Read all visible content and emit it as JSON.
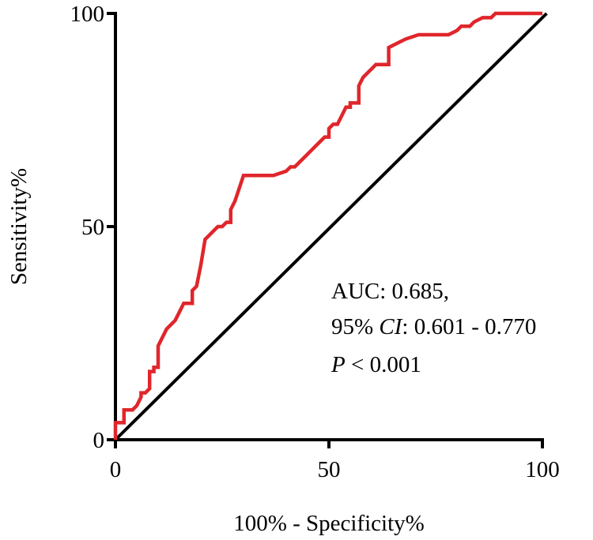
{
  "chart_data": {
    "type": "line",
    "title": "",
    "xlabel": "100% - Specificity%",
    "ylabel": "Sensitivity%",
    "xlim": [
      0,
      100
    ],
    "ylim": [
      0,
      100
    ],
    "xticks": [
      "0",
      "50",
      "100"
    ],
    "yticks": [
      "0",
      "50",
      "100"
    ],
    "grid": false,
    "legend": "none",
    "series": [
      {
        "color": "#e0262b",
        "points": [
          [
            0,
            0
          ],
          [
            0,
            4
          ],
          [
            2,
            4
          ],
          [
            2,
            7
          ],
          [
            4,
            7
          ],
          [
            5,
            8
          ],
          [
            6,
            10
          ],
          [
            6,
            11
          ],
          [
            7,
            11
          ],
          [
            8,
            12
          ],
          [
            8,
            16
          ],
          [
            9,
            16
          ],
          [
            9,
            17
          ],
          [
            10,
            17
          ],
          [
            10,
            22
          ],
          [
            11,
            24
          ],
          [
            12,
            26
          ],
          [
            14,
            28
          ],
          [
            15,
            30
          ],
          [
            16,
            32
          ],
          [
            17,
            32
          ],
          [
            18,
            32
          ],
          [
            18,
            35
          ],
          [
            19,
            36
          ],
          [
            20,
            41
          ],
          [
            21,
            47
          ],
          [
            22,
            48
          ],
          [
            23,
            49
          ],
          [
            24,
            50
          ],
          [
            25,
            50
          ],
          [
            26,
            51
          ],
          [
            27,
            51
          ],
          [
            27,
            54
          ],
          [
            28,
            56
          ],
          [
            29,
            59
          ],
          [
            30,
            62
          ],
          [
            32,
            62
          ],
          [
            34,
            62
          ],
          [
            37,
            62
          ],
          [
            40,
            63
          ],
          [
            41,
            64
          ],
          [
            42,
            64
          ],
          [
            44,
            66
          ],
          [
            46,
            68
          ],
          [
            48,
            70
          ],
          [
            49,
            71
          ],
          [
            50,
            71
          ],
          [
            50,
            73
          ],
          [
            51,
            74
          ],
          [
            52,
            74
          ],
          [
            53,
            76
          ],
          [
            54,
            78
          ],
          [
            55,
            78
          ],
          [
            55,
            79
          ],
          [
            56,
            79
          ],
          [
            57,
            79
          ],
          [
            57,
            83
          ],
          [
            58,
            85
          ],
          [
            60,
            87
          ],
          [
            61,
            88
          ],
          [
            64,
            88
          ],
          [
            64,
            92
          ],
          [
            66,
            93
          ],
          [
            68,
            94
          ],
          [
            71,
            95
          ],
          [
            72,
            95
          ],
          [
            74,
            95
          ],
          [
            78,
            95
          ],
          [
            80,
            96
          ],
          [
            81,
            97
          ],
          [
            83,
            97
          ],
          [
            84,
            98
          ],
          [
            86,
            99
          ],
          [
            88,
            99
          ],
          [
            89,
            100
          ],
          [
            91,
            100
          ],
          [
            95,
            100
          ],
          [
            100,
            100
          ]
        ]
      },
      {
        "color": "#000000",
        "points": [
          [
            0,
            0
          ],
          [
            101,
            100
          ]
        ]
      }
    ],
    "annotations": {
      "auc": "AUC: 0.685,",
      "ci_prefix": "95% ",
      "ci_italic": "CI",
      "ci_suffix": ": 0.601 - 0.770",
      "p_italic": "P",
      "p_suffix": " < 0.001"
    }
  }
}
